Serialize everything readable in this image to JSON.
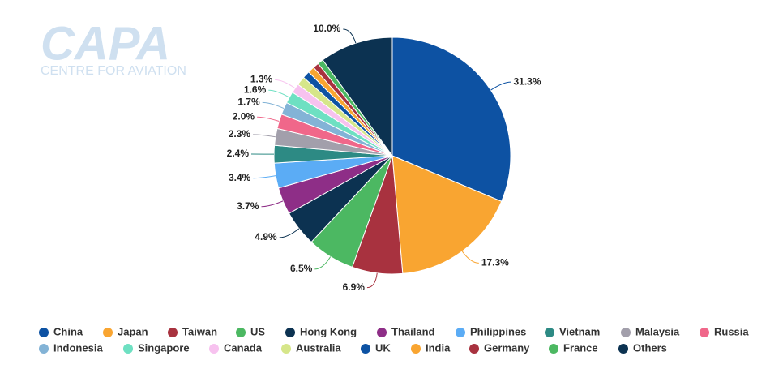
{
  "logo": {
    "title": "CAPA",
    "subtitle": "CENTRE FOR AVIATION"
  },
  "chart_data": {
    "type": "pie",
    "categories": [
      "China",
      "Japan",
      "Taiwan",
      "US",
      "Hong Kong",
      "Thailand",
      "Philippines",
      "Vietnam",
      "Malaysia",
      "Russia",
      "Indonesia",
      "Singapore",
      "Canada",
      "Australia",
      "UK",
      "India",
      "Germany",
      "France",
      "Others"
    ],
    "values": [
      31.3,
      17.3,
      6.9,
      6.5,
      4.9,
      3.7,
      3.4,
      2.4,
      2.3,
      2.0,
      1.7,
      1.6,
      1.3,
      1.2,
      1.0,
      0.9,
      0.8,
      0.8,
      10.0
    ],
    "value_labels": [
      "31.3%",
      "17.3%",
      "6.9%",
      "6.5%",
      "4.9%",
      "3.7%",
      "3.4%",
      "2.4%",
      "2.3%",
      "2.0%",
      "1.7%",
      "1.6%",
      "1.3%",
      null,
      null,
      null,
      null,
      null,
      "10.0%"
    ],
    "colors": [
      "#0d52a3",
      "#f9a531",
      "#a8323f",
      "#4cb862",
      "#0c3251",
      "#8e2e87",
      "#5bacf5",
      "#2d8a84",
      "#a29fab",
      "#f0678a",
      "#83b3d6",
      "#6ee0c2",
      "#f7c2ef",
      "#d6e68a",
      "#0d52a3",
      "#f9a531",
      "#a8323f",
      "#4cb862",
      "#0c3251"
    ],
    "legend": "bottom"
  }
}
